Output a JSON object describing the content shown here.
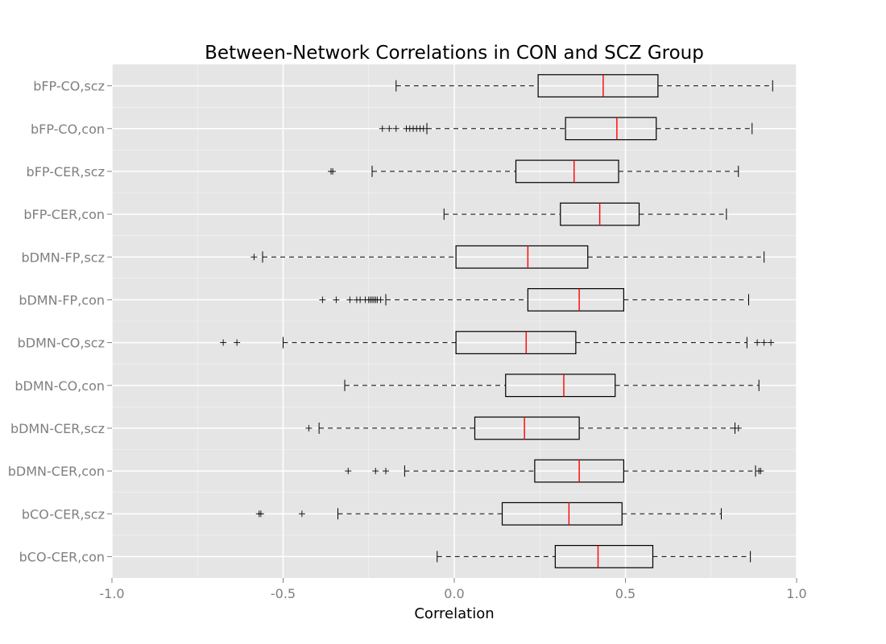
{
  "chart_data": {
    "type": "boxplot",
    "orientation": "horizontal",
    "title": "Between-Network Correlations in CON and SCZ Group",
    "xlabel": "Correlation",
    "ylabel": "",
    "xlim": [
      -1.0,
      1.0
    ],
    "xticks": [
      "-1.0",
      "-0.5",
      "0.0",
      "0.5",
      "1.0"
    ],
    "grid": true,
    "legend": "none",
    "colors": {
      "panel_background": "#e5e5e5",
      "grid": "#ffffff",
      "box": "#000000",
      "median": "#ff0000"
    },
    "categories": [
      "bFP-CO,scz",
      "bFP-CO,con",
      "bFP-CER,scz",
      "bFP-CER,con",
      "bDMN-FP,scz",
      "bDMN-FP,con",
      "bDMN-CO,scz",
      "bDMN-CO,con",
      "bDMN-CER,scz",
      "bDMN-CER,con",
      "bCO-CER,scz",
      "bCO-CER,con"
    ],
    "boxes": [
      {
        "label": "bFP-CO,scz",
        "whisker_low": -0.17,
        "q1": 0.245,
        "median": 0.435,
        "q3": 0.595,
        "whisker_high": 0.93,
        "outliers": []
      },
      {
        "label": "bFP-CO,con",
        "whisker_low": -0.08,
        "q1": 0.325,
        "median": 0.475,
        "q3": 0.59,
        "whisker_high": 0.87,
        "outliers": [
          -0.21,
          -0.19,
          -0.17,
          -0.14,
          -0.13,
          -0.12,
          -0.11,
          -0.1,
          -0.09
        ]
      },
      {
        "label": "bFP-CER,scz",
        "whisker_low": -0.24,
        "q1": 0.18,
        "median": 0.35,
        "q3": 0.48,
        "whisker_high": 0.83,
        "outliers": [
          -0.36,
          -0.355
        ]
      },
      {
        "label": "bFP-CER,con",
        "whisker_low": -0.03,
        "q1": 0.31,
        "median": 0.425,
        "q3": 0.54,
        "whisker_high": 0.795,
        "outliers": []
      },
      {
        "label": "bDMN-FP,scz",
        "whisker_low": -0.56,
        "q1": 0.005,
        "median": 0.215,
        "q3": 0.39,
        "whisker_high": 0.905,
        "outliers": [
          -0.585
        ]
      },
      {
        "label": "bDMN-FP,con",
        "whisker_low": -0.2,
        "q1": 0.215,
        "median": 0.365,
        "q3": 0.495,
        "whisker_high": 0.86,
        "outliers": [
          -0.385,
          -0.345,
          -0.305,
          -0.285,
          -0.275,
          -0.26,
          -0.25,
          -0.245,
          -0.24,
          -0.235,
          -0.23,
          -0.225,
          -0.215
        ]
      },
      {
        "label": "bDMN-CO,scz",
        "whisker_low": -0.5,
        "q1": 0.005,
        "median": 0.21,
        "q3": 0.355,
        "whisker_high": 0.855,
        "outliers": [
          -0.675,
          -0.635,
          0.885,
          0.905,
          0.925
        ]
      },
      {
        "label": "bDMN-CO,con",
        "whisker_low": -0.32,
        "q1": 0.15,
        "median": 0.32,
        "q3": 0.47,
        "whisker_high": 0.89,
        "outliers": []
      },
      {
        "label": "bDMN-CER,scz",
        "whisker_low": -0.395,
        "q1": 0.06,
        "median": 0.205,
        "q3": 0.365,
        "whisker_high": 0.82,
        "outliers": [
          -0.425,
          0.83
        ]
      },
      {
        "label": "bDMN-CER,con",
        "whisker_low": -0.145,
        "q1": 0.235,
        "median": 0.365,
        "q3": 0.495,
        "whisker_high": 0.88,
        "outliers": [
          -0.31,
          -0.23,
          -0.2,
          0.89,
          0.895
        ]
      },
      {
        "label": "bCO-CER,scz",
        "whisker_low": -0.34,
        "q1": 0.14,
        "median": 0.335,
        "q3": 0.49,
        "whisker_high": 0.78,
        "outliers": [
          -0.57,
          -0.565,
          -0.445
        ]
      },
      {
        "label": "bCO-CER,con",
        "whisker_low": -0.05,
        "q1": 0.295,
        "median": 0.42,
        "q3": 0.58,
        "whisker_high": 0.865,
        "outliers": []
      }
    ]
  }
}
